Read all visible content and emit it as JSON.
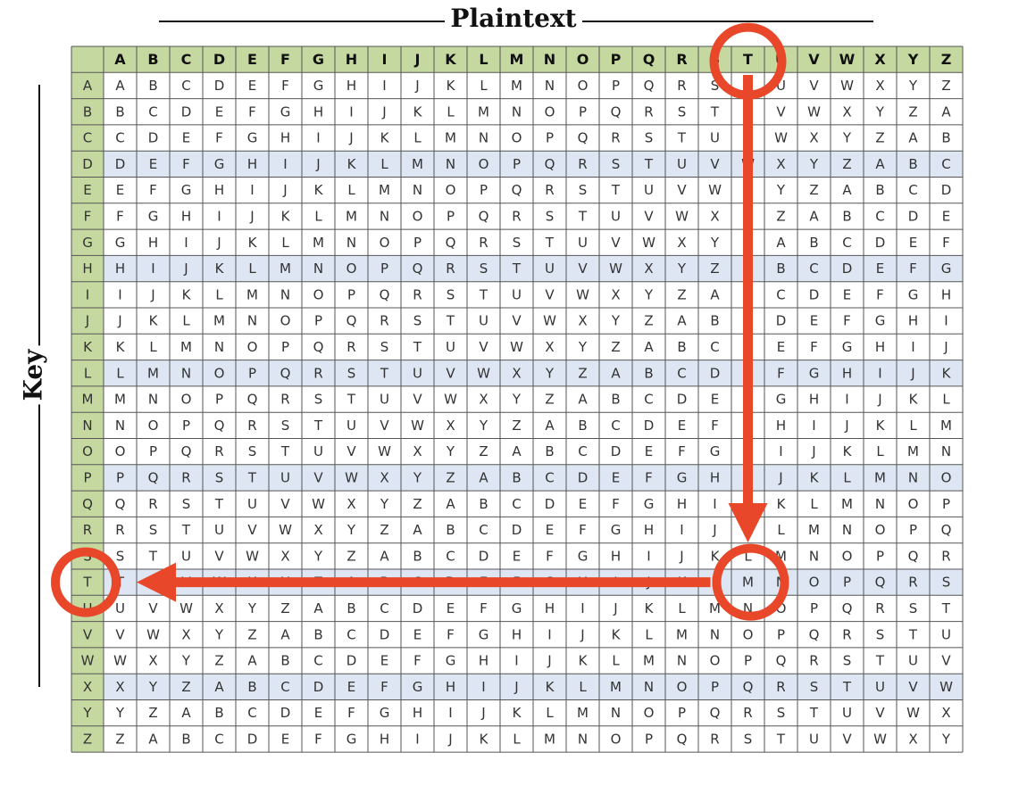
{
  "plaintext_label": "Plaintext",
  "key_label": "Key",
  "alphabet": [
    "A",
    "B",
    "C",
    "D",
    "E",
    "F",
    "G",
    "H",
    "I",
    "J",
    "K",
    "L",
    "M",
    "N",
    "O",
    "P",
    "Q",
    "R",
    "S",
    "T",
    "U",
    "V",
    "W",
    "X",
    "Y",
    "Z"
  ],
  "highlight_rows": [
    "D",
    "H",
    "L",
    "P",
    "T",
    "X"
  ],
  "colors": {
    "header_fill": "#c5d8a0",
    "band_fill": "#dde6f2",
    "grid_line": "#555555",
    "annotation": "#e8472a"
  },
  "example": {
    "plaintext_letter": "T",
    "key_letter": "T",
    "cipher_letter": "M"
  }
}
